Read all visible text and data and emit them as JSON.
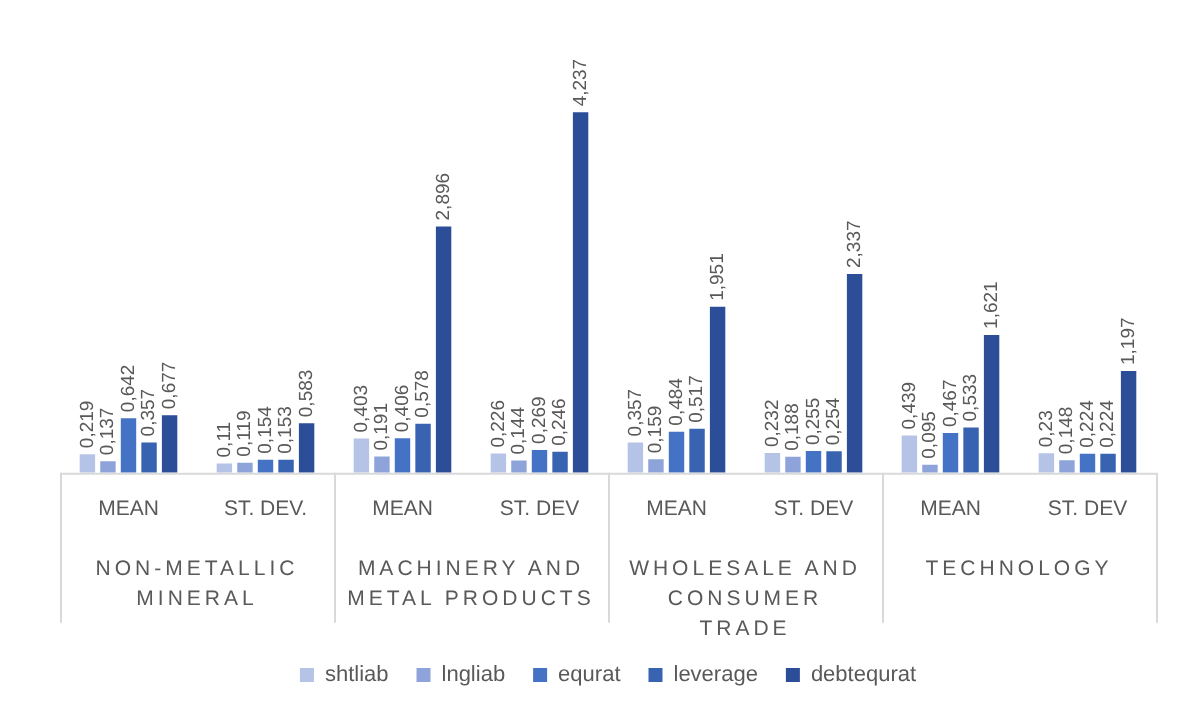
{
  "chart_data": {
    "type": "bar",
    "categories": [
      "MEAN",
      "ST. DEV.",
      "MEAN",
      "ST. DEV",
      "MEAN",
      "ST. DEV",
      "MEAN",
      "ST. DEV"
    ],
    "annotations": [
      "NON-METALLIC MINERAL",
      "MACHINERY AND METAL PRODUCTS",
      "WHOLESALE AND CONSUMER TRADE",
      "TECHNOLOGY"
    ],
    "legend": "bottom",
    "grid": false,
    "series": [
      {
        "name": "shtliab",
        "color": "#b4c3e6",
        "values": [
          0.219,
          0.11,
          0.403,
          0.226,
          0.357,
          0.232,
          0.439,
          0.23
        ],
        "value_labels": [
          "0,219",
          "0,11",
          "0,403",
          "0,226",
          "0,357",
          "0,232",
          "0,439",
          "0,23"
        ]
      },
      {
        "name": "lngliab",
        "color": "#8da3d9",
        "values": [
          0.137,
          0.119,
          0.191,
          0.144,
          0.159,
          0.188,
          0.095,
          0.148
        ],
        "value_labels": [
          "0,137",
          "0,119",
          "0,191",
          "0,144",
          "0,159",
          "0,188",
          "0,095",
          "0,148"
        ]
      },
      {
        "name": "equrat",
        "color": "#4472c4",
        "values": [
          0.642,
          0.154,
          0.406,
          0.269,
          0.484,
          0.255,
          0.467,
          0.224
        ],
        "value_labels": [
          "0,642",
          "0,154",
          "0,406",
          "0,269",
          "0,484",
          "0,255",
          "0,467",
          "0,224"
        ]
      },
      {
        "name": "leverage",
        "color": "#3763b0",
        "values": [
          0.357,
          0.153,
          0.578,
          0.246,
          0.517,
          0.254,
          0.533,
          0.224
        ],
        "value_labels": [
          "0,357",
          "0,153",
          "0,578",
          "0,246",
          "0,517",
          "0,254",
          "0,533",
          "0,224"
        ]
      },
      {
        "name": "debtequrat",
        "color": "#2c4d97",
        "values": [
          0.677,
          0.583,
          2.896,
          4.237,
          1.951,
          2.337,
          1.621,
          1.197
        ],
        "value_labels": [
          "0,677",
          "0,583",
          "2,896",
          "4,237",
          "1,951",
          "2,337",
          "1,621",
          "1,197"
        ]
      }
    ]
  }
}
